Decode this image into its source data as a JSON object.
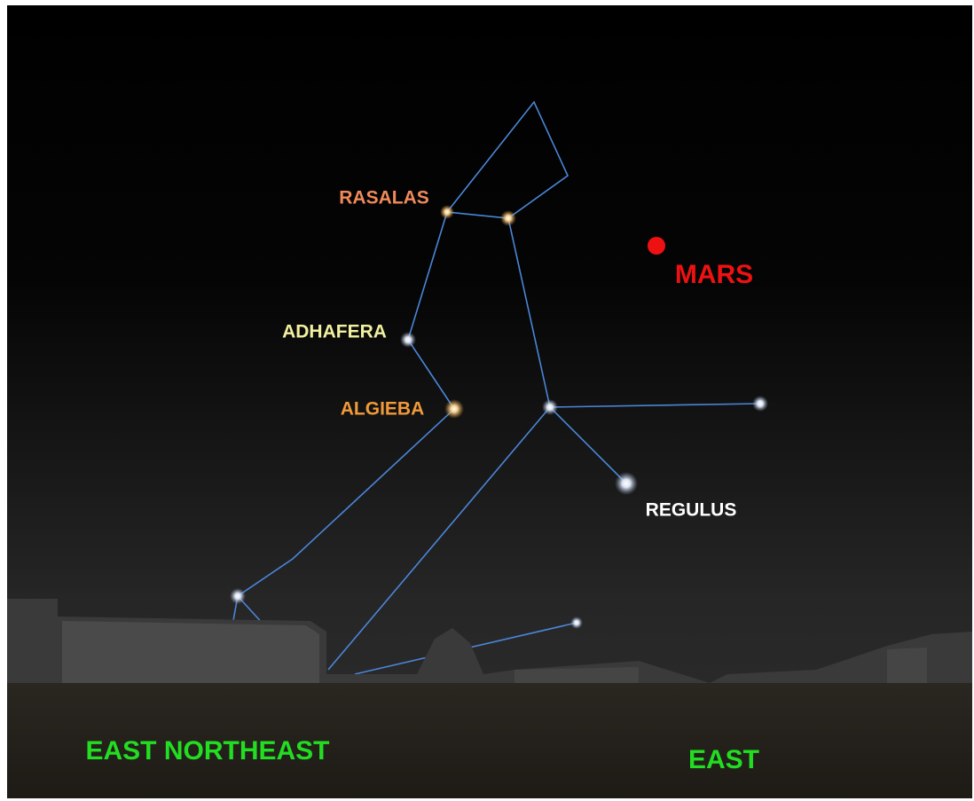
{
  "labels": {
    "stars": [
      "RASALAS",
      "ADHAFERA",
      "ALGIEBA",
      "REGULUS"
    ],
    "planet": "MARS",
    "directions": [
      "EAST NORTHEAST",
      "EAST"
    ]
  }
}
